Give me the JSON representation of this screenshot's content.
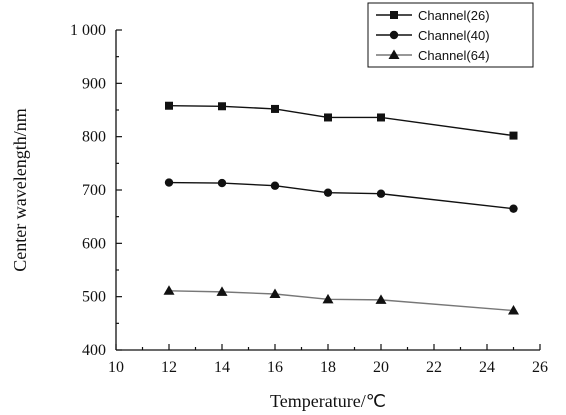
{
  "chart_data": {
    "type": "line",
    "title": "",
    "xlabel": "Temperature/℃",
    "ylabel": "Center wavelength/nm",
    "xlim": [
      10,
      26
    ],
    "ylim": [
      400,
      1000
    ],
    "x_ticks": [
      10,
      12,
      14,
      16,
      18,
      20,
      22,
      24,
      26
    ],
    "x_tick_labels": [
      "10",
      "12",
      "14",
      "16",
      "18",
      "20",
      "22",
      "24",
      "26"
    ],
    "y_ticks": [
      400,
      500,
      600,
      700,
      800,
      900,
      1000
    ],
    "y_tick_labels": [
      "400",
      "500",
      "600",
      "700",
      "800",
      "900",
      "1 000"
    ],
    "grid": false,
    "legend_position": "top-right",
    "x": [
      12,
      14,
      16,
      18,
      20,
      25
    ],
    "series": [
      {
        "name": "Channel(26)",
        "marker": "square",
        "color": "#111111",
        "values": [
          858,
          857,
          852,
          836,
          836,
          802
        ]
      },
      {
        "name": "Channel(40)",
        "marker": "circle",
        "color": "#111111",
        "values": [
          714,
          713,
          708,
          695,
          693,
          665
        ]
      },
      {
        "name": "Channel(64)",
        "marker": "triangle",
        "color": "#777777",
        "values": [
          511,
          509,
          505,
          495,
          494,
          474
        ]
      }
    ]
  }
}
